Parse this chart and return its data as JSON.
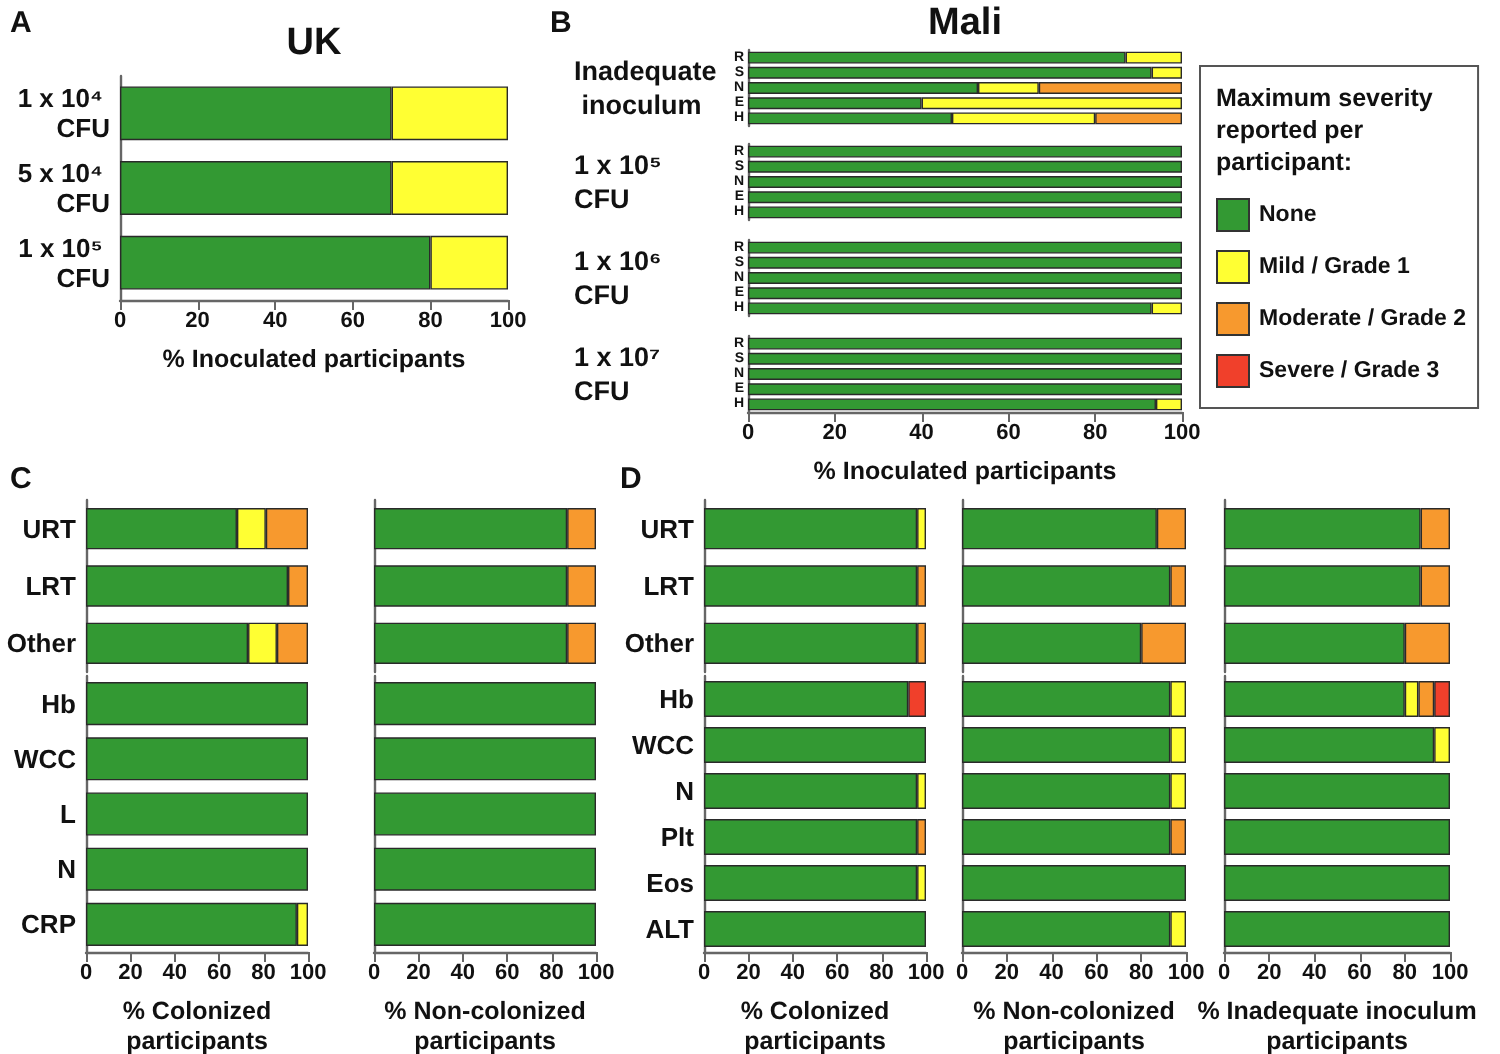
{
  "chart_data": [
    {
      "type": "bar",
      "orientation": "horizontal",
      "stacked": true,
      "title": "UK",
      "annotations": [
        "A"
      ],
      "categories": [
        "1 x 10⁴ CFU",
        "5 x 10⁴ CFU",
        "1 x 10⁵ CFU"
      ],
      "series": [
        {
          "color": "#339933",
          "values": [
            70,
            70,
            80
          ]
        },
        {
          "color": "#ffff33",
          "values": [
            30,
            30,
            20
          ]
        }
      ],
      "xlim": [
        0,
        100
      ],
      "xticks": [
        0,
        20,
        40,
        60,
        80,
        100
      ],
      "xlabel": "% Inoculated participants"
    },
    {
      "type": "bar",
      "orientation": "horizontal",
      "stacked": true,
      "title": "Mali",
      "annotations": [
        "B"
      ],
      "ylabel": "Inadequate inoculum",
      "categories": [
        "R",
        "S",
        "N",
        "E",
        "H"
      ],
      "series": [
        {
          "name": "None",
          "color": "#339933",
          "values": [
            87,
            93,
            53,
            40,
            47
          ]
        },
        {
          "name": "Mild / Grade 1",
          "color": "#ffff33",
          "values": [
            13,
            7,
            14,
            60,
            33
          ]
        },
        {
          "name": "Moderate / Grade 2",
          "color": "#f7992e",
          "values": [
            null,
            null,
            33,
            null,
            20
          ]
        },
        {
          "name": "Severe / Grade 3",
          "color": "#f0402b",
          "values": [
            null,
            null,
            null,
            null,
            null
          ]
        }
      ],
      "legend": "right",
      "legend_title": "Maximum severity reported per participant:",
      "xlim": [
        0,
        100
      ],
      "tick_labels": "y"
    },
    {
      "type": "bar",
      "orientation": "horizontal",
      "stacked": true,
      "ylabel": "1 x 10⁵ CFU",
      "categories": [
        "R",
        "S",
        "N",
        "E",
        "H"
      ],
      "series": [
        {
          "color": "#339933",
          "values": [
            100,
            100,
            100,
            100,
            100
          ]
        }
      ],
      "xlim": [
        0,
        100
      ],
      "tick_labels": "y"
    },
    {
      "type": "bar",
      "orientation": "horizontal",
      "stacked": true,
      "ylabel": "1 x 10⁶ CFU",
      "categories": [
        "R",
        "S",
        "N",
        "E",
        "H"
      ],
      "series": [
        {
          "color": "#339933",
          "values": [
            100,
            100,
            100,
            100,
            93
          ]
        },
        {
          "color": "#ffff33",
          "values": [
            null,
            null,
            null,
            null,
            7
          ]
        }
      ],
      "xlim": [
        0,
        100
      ],
      "tick_labels": "y"
    },
    {
      "type": "bar",
      "orientation": "horizontal",
      "stacked": true,
      "ylabel": "1 x 10⁷ CFU",
      "categories": [
        "R",
        "S",
        "N",
        "E",
        "H"
      ],
      "series": [
        {
          "color": "#339933",
          "values": [
            100,
            100,
            100,
            100,
            94
          ]
        },
        {
          "color": "#ffff33",
          "values": [
            null,
            null,
            null,
            null,
            6
          ]
        }
      ],
      "xlim": [
        0,
        100
      ],
      "xticks": [
        0,
        20,
        40,
        60,
        80,
        100
      ],
      "xlabel": "% Inoculated participants"
    },
    {
      "type": "bar",
      "orientation": "horizontal",
      "stacked": true,
      "annotations": [
        "C"
      ],
      "categories": [
        "URT",
        "LRT",
        "Other"
      ],
      "series": [
        {
          "color": "#339933",
          "values": [
            68,
            91,
            73
          ]
        },
        {
          "color": "#ffff33",
          "values": [
            13,
            null,
            13
          ]
        },
        {
          "color": "#f7992e",
          "values": [
            19,
            9,
            14
          ]
        }
      ],
      "xlim": [
        0,
        100
      ],
      "tick_labels": "y"
    },
    {
      "type": "bar",
      "orientation": "horizontal",
      "stacked": true,
      "categories": [
        "Hb",
        "WCC",
        "L",
        "N",
        "CRP"
      ],
      "series": [
        {
          "color": "#339933",
          "values": [
            100,
            100,
            100,
            100,
            95
          ]
        },
        {
          "color": "#ffff33",
          "values": [
            null,
            null,
            null,
            null,
            5
          ]
        }
      ],
      "xlim": [
        0,
        100
      ],
      "xticks": [
        0,
        20,
        40,
        60,
        80,
        100
      ],
      "xlabel": "% Colonized participants"
    },
    {
      "type": "bar",
      "orientation": "horizontal",
      "stacked": true,
      "categories": [
        null,
        null,
        null
      ],
      "series": [
        {
          "color": "#339933",
          "values": [
            87,
            87,
            87
          ]
        },
        {
          "color": "#f7992e",
          "values": [
            13,
            13,
            13
          ]
        }
      ],
      "xlim": [
        0,
        100
      ],
      "tick_labels": false
    },
    {
      "type": "bar",
      "orientation": "horizontal",
      "stacked": true,
      "categories": [
        null,
        null,
        null,
        null,
        null
      ],
      "series": [
        {
          "color": "#339933",
          "values": [
            100,
            100,
            100,
            100,
            100
          ]
        }
      ],
      "xlim": [
        0,
        100
      ],
      "xticks": [
        0,
        20,
        40,
        60,
        80,
        100
      ],
      "xlabel": "% Non-colonized participants",
      "tick_labels": "x"
    },
    {
      "type": "bar",
      "orientation": "horizontal",
      "stacked": true,
      "annotations": [
        "D"
      ],
      "categories": [
        "URT",
        "LRT",
        "Other"
      ],
      "series": [
        {
          "color": "#339933",
          "values": [
            96,
            96,
            96
          ]
        },
        {
          "color": "#ffff33",
          "values": [
            4,
            null,
            null
          ]
        },
        {
          "color": "#f7992e",
          "values": [
            null,
            4,
            4
          ]
        }
      ],
      "xlim": [
        0,
        100
      ],
      "tick_labels": "y"
    },
    {
      "type": "bar",
      "orientation": "horizontal",
      "stacked": true,
      "categories": [
        "Hb",
        "WCC",
        "N",
        "Plt",
        "Eos",
        "ALT"
      ],
      "series": [
        {
          "color": "#339933",
          "values": [
            92,
            100,
            96,
            96,
            96,
            100
          ]
        },
        {
          "color": "#ffff33",
          "values": [
            null,
            null,
            4,
            null,
            4,
            null
          ]
        },
        {
          "color": "#f7992e",
          "values": [
            null,
            null,
            null,
            4,
            null,
            null
          ]
        },
        {
          "color": "#f0402b",
          "values": [
            8,
            null,
            null,
            null,
            null,
            null
          ]
        }
      ],
      "xlim": [
        0,
        100
      ],
      "xticks": [
        0,
        20,
        40,
        60,
        80,
        100
      ],
      "xlabel": "% Colonized participants"
    },
    {
      "type": "bar",
      "orientation": "horizontal",
      "stacked": true,
      "categories": [
        null,
        null,
        null
      ],
      "series": [
        {
          "color": "#339933",
          "values": [
            87,
            93,
            80
          ]
        },
        {
          "color": "#f7992e",
          "values": [
            13,
            7,
            20
          ]
        }
      ],
      "xlim": [
        0,
        100
      ],
      "tick_labels": false
    },
    {
      "type": "bar",
      "orientation": "horizontal",
      "stacked": true,
      "categories": [
        null,
        null,
        null,
        null,
        null,
        null
      ],
      "series": [
        {
          "color": "#339933",
          "values": [
            93,
            93,
            93,
            93,
            100,
            93
          ]
        },
        {
          "color": "#ffff33",
          "values": [
            7,
            7,
            7,
            null,
            null,
            7
          ]
        },
        {
          "color": "#f7992e",
          "values": [
            null,
            null,
            null,
            7,
            null,
            null
          ]
        }
      ],
      "xlim": [
        0,
        100
      ],
      "xticks": [
        0,
        20,
        40,
        60,
        80,
        100
      ],
      "xlabel": "% Non-colonized participants",
      "tick_labels": "x"
    },
    {
      "type": "bar",
      "orientation": "horizontal",
      "stacked": true,
      "categories": [
        null,
        null,
        null
      ],
      "series": [
        {
          "color": "#339933",
          "values": [
            87,
            87,
            80
          ]
        },
        {
          "color": "#f7992e",
          "values": [
            13,
            13,
            20
          ]
        }
      ],
      "xlim": [
        0,
        100
      ],
      "tick_labels": false
    },
    {
      "type": "bar",
      "orientation": "horizontal",
      "stacked": true,
      "categories": [
        null,
        null,
        null,
        null,
        null,
        null
      ],
      "series": [
        {
          "color": "#339933",
          "values": [
            80,
            93,
            100,
            100,
            100,
            100
          ]
        },
        {
          "color": "#ffff33",
          "values": [
            6,
            7,
            null,
            null,
            null,
            null
          ]
        },
        {
          "color": "#f7992e",
          "values": [
            7,
            null,
            null,
            null,
            null,
            null
          ]
        },
        {
          "color": "#f0402b",
          "values": [
            7,
            null,
            null,
            null,
            null,
            null
          ]
        }
      ],
      "xlim": [
        0,
        100
      ],
      "xticks": [
        0,
        20,
        40,
        60,
        80,
        100
      ],
      "xlabel": "% Inadequate inoculum participants",
      "tick_labels": "x"
    }
  ]
}
